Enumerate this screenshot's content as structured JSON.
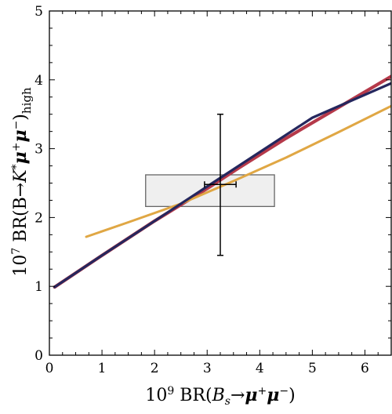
{
  "chart_data": {
    "type": "scatter",
    "xlabel": "10⁹ BR(Bₛ→μ⁺μ⁻)",
    "ylabel": "10⁷ BR(B→K*μ⁺μ⁻)ₕᵢᵍₕ",
    "xlim": [
      0,
      6.5
    ],
    "ylim": [
      0,
      5
    ],
    "x_ticks": [
      "0",
      "1",
      "2",
      "3",
      "4",
      "5",
      "6"
    ],
    "y_ticks": [
      "0",
      "1",
      "2",
      "3",
      "4",
      "5"
    ],
    "grid": false,
    "series": [
      {
        "color": "#b5394a",
        "points": [
          [
            0.1,
            0.99
          ],
          [
            1.0,
            1.45
          ],
          [
            2.0,
            1.95
          ],
          [
            3.0,
            2.42
          ],
          [
            3.6,
            2.72
          ],
          [
            4.5,
            3.15
          ],
          [
            5.5,
            3.6
          ],
          [
            6.5,
            4.05
          ]
        ]
      },
      {
        "color": "#e0a744",
        "points": [
          [
            0.7,
            1.72
          ],
          [
            1.5,
            1.93
          ],
          [
            2.5,
            2.2
          ],
          [
            3.5,
            2.53
          ],
          [
            4.5,
            2.87
          ],
          [
            5.5,
            3.24
          ],
          [
            6.5,
            3.62
          ]
        ]
      },
      {
        "color": "#25275e",
        "points": [
          [
            0.1,
            0.99
          ],
          [
            1.0,
            1.45
          ],
          [
            2.0,
            1.95
          ],
          [
            3.0,
            2.45
          ],
          [
            4.0,
            2.95
          ],
          [
            5.0,
            3.45
          ],
          [
            6.5,
            3.95
          ]
        ]
      }
    ],
    "measurement": {
      "x": 3.25,
      "y": 2.48,
      "x_err": [
        2.95,
        3.55
      ],
      "y_err": [
        1.45,
        3.5
      ]
    },
    "band": {
      "x_range": [
        1.83,
        4.28
      ],
      "y_range": [
        2.16,
        2.62
      ],
      "fill": "#efefef",
      "stroke": "#666666"
    }
  }
}
